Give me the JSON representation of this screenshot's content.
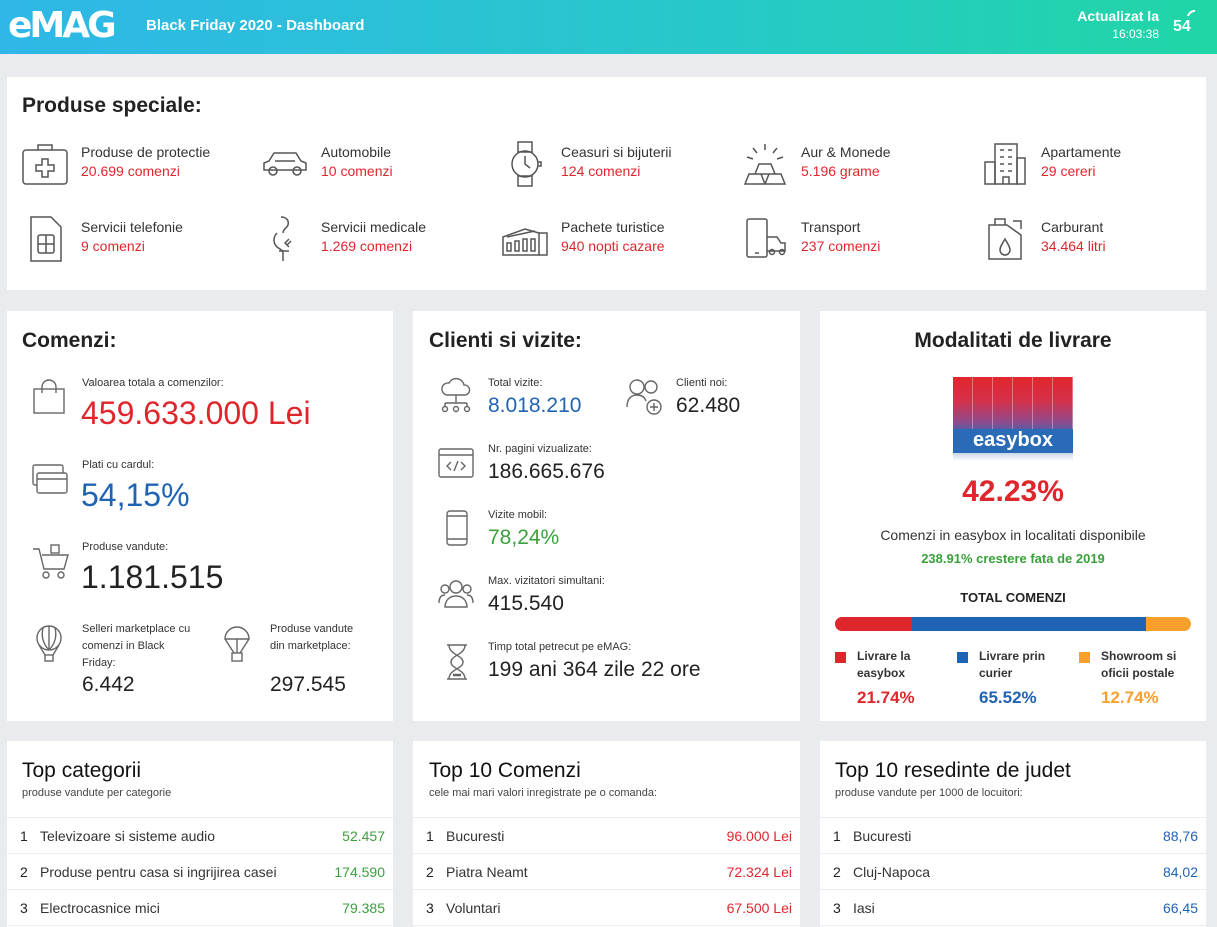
{
  "header": {
    "logo": "eMAG",
    "title": "Black Friday 2020 - Dashboard",
    "updated_label": "Actualizat la",
    "updated_time": "16:03:38",
    "counter": "54"
  },
  "special": {
    "title": "Produse speciale:",
    "items": [
      {
        "name": "Produse de protectie",
        "value": "20.699 comenzi",
        "icon": "first-aid-kit-icon"
      },
      {
        "name": "Automobile",
        "value": "10 comenzi",
        "icon": "car-icon"
      },
      {
        "name": "Ceasuri si bijuterii",
        "value": "124 comenzi",
        "icon": "watch-icon"
      },
      {
        "name": "Aur & Monede",
        "value": "5.196 grame",
        "icon": "gold-bars-icon"
      },
      {
        "name": "Apartamente",
        "value": "29 cereri",
        "icon": "building-icon"
      },
      {
        "name": "Servicii telefonie",
        "value": "9 comenzi",
        "icon": "sim-card-icon"
      },
      {
        "name": "Servicii medicale",
        "value": "1.269 comenzi",
        "icon": "medical-icon"
      },
      {
        "name": "Pachete turistice",
        "value": "940 nopti cazare",
        "icon": "colosseum-icon"
      },
      {
        "name": "Transport",
        "value": "237 comenzi",
        "icon": "phone-car-icon"
      },
      {
        "name": "Carburant",
        "value": "34.464 litri",
        "icon": "fuel-can-icon"
      }
    ]
  },
  "orders": {
    "title": "Comenzi:",
    "total_label": "Valoarea totala a comenzilor:",
    "total_value": "459.633.000 Lei",
    "card_label": "Plati cu cardul:",
    "card_value": "54,15%",
    "sold_label": "Produse vandute:",
    "sold_value": "1.181.515",
    "sellers_label": "Selleri marketplace cu comenzi in Black Friday:",
    "sellers_value": "6.442",
    "mkt_label": "Produse vandute din marketplace:",
    "mkt_value": "297.545"
  },
  "clients": {
    "title": "Clienti si vizite:",
    "visits_label": "Total vizite:",
    "visits_value": "8.018.210",
    "new_label": "Clienti noi:",
    "new_value": "62.480",
    "pages_label": "Nr. pagini vizualizate:",
    "pages_value": "186.665.676",
    "mobile_label": "Vizite mobil:",
    "mobile_value": "78,24%",
    "max_label": "Max. vizitatori simultani:",
    "max_value": "415.540",
    "time_label": "Timp total petrecut pe eMAG:",
    "time_value": "199 ani 364 zile 22 ore"
  },
  "delivery": {
    "title": "Modalitati de livrare",
    "brand": "easybox",
    "pct": "42.23%",
    "desc": "Comenzi in easybox in localitati disponibile",
    "growth": "238.91% crestere fata de 2019",
    "total_label": "TOTAL COMENZI",
    "shares": [
      {
        "label": "Livrare la easybox",
        "value": "21.74%",
        "fraction": 0.2174,
        "color": "#e0262d"
      },
      {
        "label": "Livrare prin curier",
        "value": "65.52%",
        "fraction": 0.6552,
        "color": "#1f63b5"
      },
      {
        "label": "Showroom si oficii postale",
        "value": "12.74%",
        "fraction": 0.1274,
        "color": "#f7a02c"
      }
    ]
  },
  "top_categories": {
    "title": "Top categorii",
    "subtitle": "produse vandute per categorie",
    "rows": [
      {
        "idx": "1",
        "name": "Televizoare si sisteme audio",
        "value": "52.457"
      },
      {
        "idx": "2",
        "name": "Produse pentru casa si ingrijirea casei",
        "value": "174.590"
      },
      {
        "idx": "3",
        "name": "Electrocasnice mici",
        "value": "79.385"
      }
    ]
  },
  "top_orders": {
    "title": "Top 10 Comenzi",
    "subtitle": "cele mai mari valori inregistrate pe o comanda:",
    "rows": [
      {
        "idx": "1",
        "name": "Bucuresti",
        "value": "96.000 Lei"
      },
      {
        "idx": "2",
        "name": "Piatra Neamt",
        "value": "72.324 Lei"
      },
      {
        "idx": "3",
        "name": "Voluntari",
        "value": "67.500 Lei"
      }
    ]
  },
  "top_counties": {
    "title": "Top 10 resedinte de judet",
    "subtitle": "produse vandute per 1000 de locuitori:",
    "rows": [
      {
        "idx": "1",
        "name": "Bucuresti",
        "value": "88,76"
      },
      {
        "idx": "2",
        "name": "Cluj-Napoca",
        "value": "84,02"
      },
      {
        "idx": "3",
        "name": "Iasi",
        "value": "66,45"
      }
    ]
  }
}
